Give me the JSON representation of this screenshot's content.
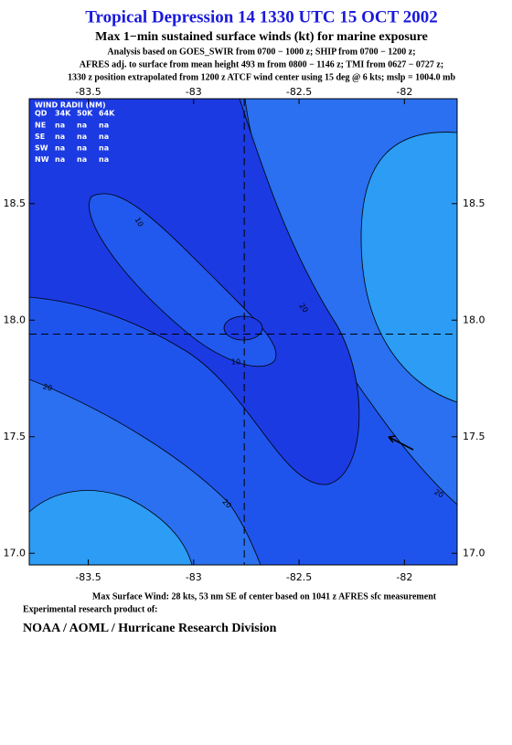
{
  "chart_data": {
    "type": "contour",
    "title": "Tropical Depression 14 1330 UTC 15 OCT 2002",
    "subtitle": "Max 1−min sustained surface winds (kt) for marine exposure",
    "notes": [
      "Analysis based on  GOES_SWIR from 0700 − 1000 z;  SHIP from 0700 − 1200 z;",
      "AFRES adj. to surface from mean height 493 m from 0800 − 1146 z;  TMI from 0627 − 0727 z;",
      "1330 z position extrapolated from 1200 z ATCF wind center using 15 deg @ 6 kts; mslp = 1004.0 mb"
    ],
    "xlim": [
      -83.78,
      -81.75
    ],
    "ylim": [
      16.95,
      18.95
    ],
    "xticks": [
      -83.5,
      -83.0,
      -82.5,
      -82.0
    ],
    "yticks": [
      {
        "value": 17,
        "label": "17.0"
      },
      17.5,
      {
        "value": 18,
        "label": "18.0"
      },
      18.5
    ],
    "center": {
      "x": -82.76,
      "y": 17.94
    },
    "contour_labels": [
      10,
      20,
      10,
      20,
      20,
      20
    ],
    "wind_radii": {
      "title": "WIND RADII (NM)",
      "header": [
        "QD",
        "34K",
        "50K",
        "64K"
      ],
      "rows": [
        [
          "NE",
          "na",
          "na",
          "na"
        ],
        [
          "SE",
          "na",
          "na",
          "na"
        ],
        [
          "SW",
          "na",
          "na",
          "na"
        ],
        [
          "NW",
          "na",
          "na",
          "na"
        ]
      ]
    },
    "footer": "Max Surface Wind: 28 kts, 53 nm SE of center based on 1041 z AFRES sfc measurement",
    "credit": "Experimental research product of:",
    "organization": "NOAA / AOML / Hurricane Research Division"
  }
}
